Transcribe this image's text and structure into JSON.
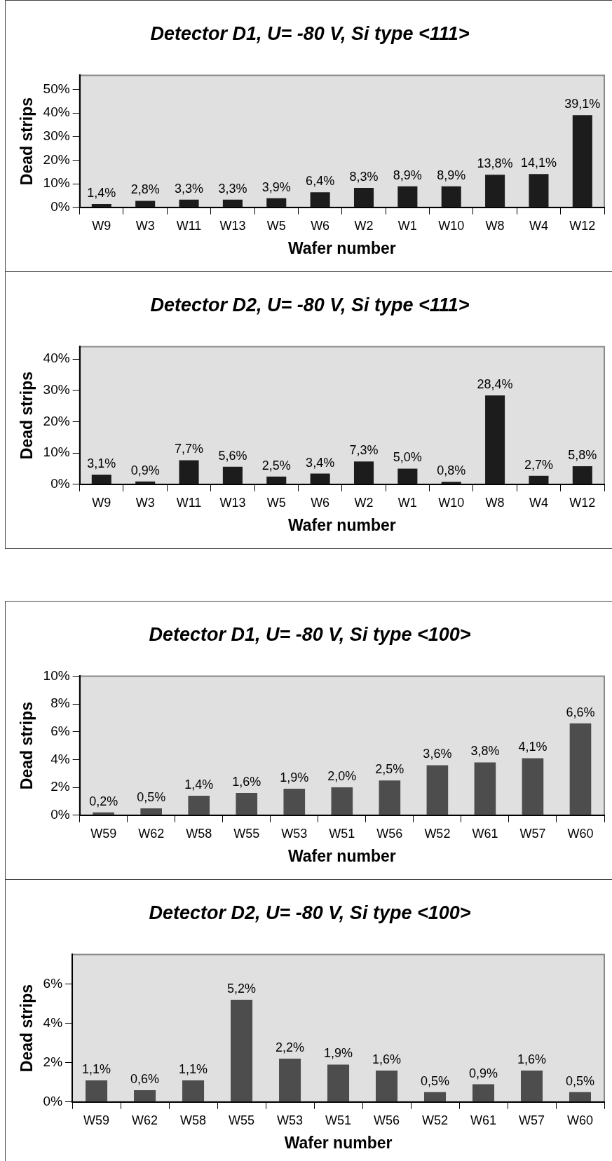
{
  "chart_data": [
    {
      "type": "bar",
      "title": "Detector D1, U= -80 V, Si type <111>",
      "xlabel": "Wafer number",
      "ylabel": "Dead strips",
      "categories": [
        "W9",
        "W3",
        "W11",
        "W13",
        "W5",
        "W6",
        "W2",
        "W1",
        "W10",
        "W8",
        "W4",
        "W12"
      ],
      "values": [
        1.4,
        2.8,
        3.3,
        3.3,
        3.9,
        6.4,
        8.3,
        8.9,
        8.9,
        13.8,
        14.1,
        39.1
      ],
      "value_labels": [
        "1,4%",
        "2,8%",
        "3,3%",
        "3,3%",
        "3,9%",
        "6,4%",
        "8,3%",
        "8,9%",
        "8,9%",
        "13,8%",
        "14,1%",
        "39,1%"
      ],
      "color": "#1c1c1c",
      "ylim": [
        0,
        56
      ],
      "yticks": [
        {
          "value": 0,
          "label": "0%"
        },
        {
          "value": 10,
          "label": "10%"
        },
        {
          "value": 20,
          "label": "20%"
        },
        {
          "value": 30,
          "label": "30%"
        },
        {
          "value": 40,
          "label": "40%"
        },
        {
          "value": 50,
          "label": "50%"
        }
      ]
    },
    {
      "type": "bar",
      "title": "Detector D2, U= -80 V, Si type <111>",
      "xlabel": "Wafer number",
      "ylabel": "Dead strips",
      "categories": [
        "W9",
        "W3",
        "W11",
        "W13",
        "W5",
        "W6",
        "W2",
        "W1",
        "W10",
        "W8",
        "W4",
        "W12"
      ],
      "values": [
        3.1,
        0.9,
        7.7,
        5.6,
        2.5,
        3.4,
        7.3,
        5.0,
        0.8,
        28.4,
        2.7,
        5.8
      ],
      "value_labels": [
        "3,1%",
        "0,9%",
        "7,7%",
        "5,6%",
        "2,5%",
        "3,4%",
        "7,3%",
        "5,0%",
        "0,8%",
        "28,4%",
        "2,7%",
        "5,8%"
      ],
      "color": "#1c1c1c",
      "ylim": [
        0,
        44
      ],
      "yticks": [
        {
          "value": 0,
          "label": "0%"
        },
        {
          "value": 10,
          "label": "10%"
        },
        {
          "value": 20,
          "label": "20%"
        },
        {
          "value": 30,
          "label": "30%"
        },
        {
          "value": 40,
          "label": "40%"
        }
      ]
    },
    {
      "type": "bar",
      "title": "Detector D1, U= -80 V, Si type <100>",
      "xlabel": "Wafer number",
      "ylabel": "Dead strips",
      "categories": [
        "W59",
        "W62",
        "W58",
        "W55",
        "W53",
        "W51",
        "W56",
        "W52",
        "W61",
        "W57",
        "W60"
      ],
      "values": [
        0.2,
        0.5,
        1.4,
        1.6,
        1.9,
        2.0,
        2.5,
        3.6,
        3.8,
        4.1,
        6.6
      ],
      "value_labels": [
        "0,2%",
        "0,5%",
        "1,4%",
        "1,6%",
        "1,9%",
        "2,0%",
        "2,5%",
        "3,6%",
        "3,8%",
        "4,1%",
        "6,6%"
      ],
      "color": "#4d4d4d",
      "ylim": [
        0,
        10
      ],
      "yticks": [
        {
          "value": 0,
          "label": "0%"
        },
        {
          "value": 2,
          "label": "2%"
        },
        {
          "value": 4,
          "label": "4%"
        },
        {
          "value": 6,
          "label": "6%"
        },
        {
          "value": 8,
          "label": "8%"
        },
        {
          "value": 10,
          "label": "10%"
        }
      ]
    },
    {
      "type": "bar",
      "title": "Detector D2, U= -80 V, Si type <100>",
      "xlabel": "Wafer number",
      "ylabel": "Dead strips",
      "categories": [
        "W59",
        "W62",
        "W58",
        "W55",
        "W53",
        "W51",
        "W56",
        "W52",
        "W61",
        "W57",
        "W60"
      ],
      "values": [
        1.1,
        0.6,
        1.1,
        5.2,
        2.2,
        1.9,
        1.6,
        0.5,
        0.9,
        1.6,
        0.5
      ],
      "value_labels": [
        "1,1%",
        "0,6%",
        "1,1%",
        "5,2%",
        "2,2%",
        "1,9%",
        "1,6%",
        "0,5%",
        "0,9%",
        "1,6%",
        "0,5%"
      ],
      "color": "#4d4d4d",
      "ylim": [
        0,
        7.5
      ],
      "yticks": [
        {
          "value": 0,
          "label": "0%"
        },
        {
          "value": 2,
          "label": "2%"
        },
        {
          "value": 4,
          "label": "4%"
        },
        {
          "value": 6,
          "label": "6%"
        }
      ]
    }
  ]
}
